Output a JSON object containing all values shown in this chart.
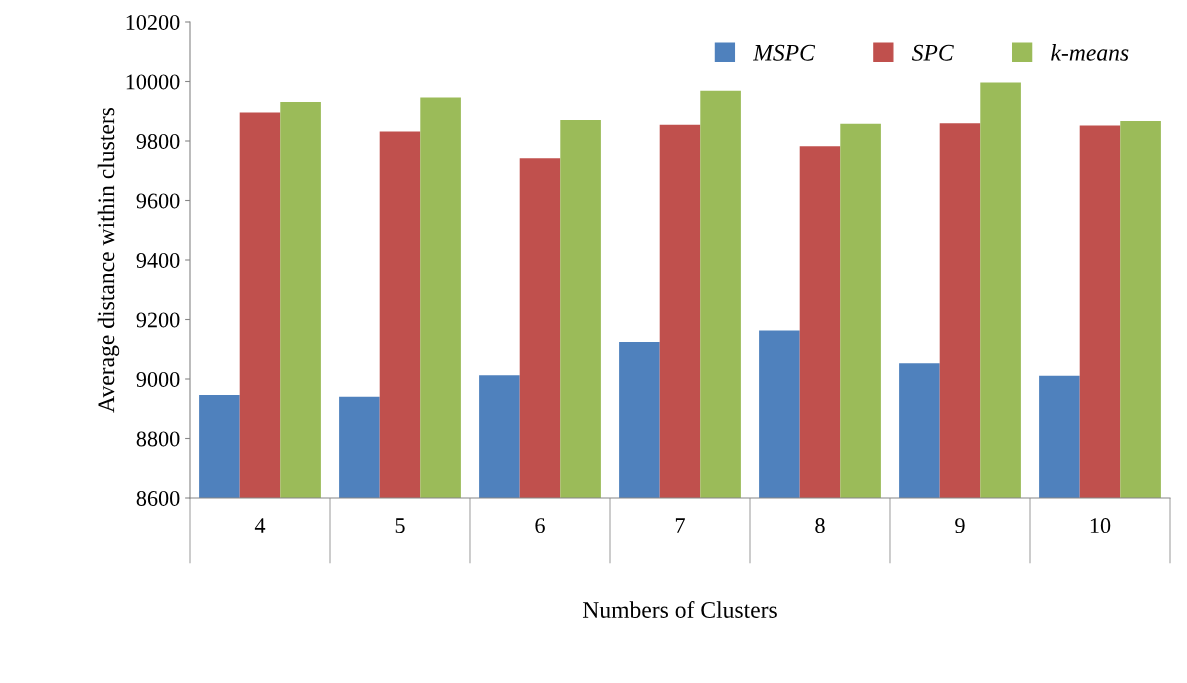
{
  "chart_data": {
    "type": "bar",
    "xlabel": "Numbers of Clusters",
    "ylabel": "Average distance within clusters",
    "categories": [
      "4",
      "5",
      "6",
      "7",
      "8",
      "9",
      "10"
    ],
    "series": [
      {
        "name": "MSPC",
        "color": "#4f81bd",
        "values": [
          8946,
          8940,
          9013,
          9124,
          9163,
          9053,
          9011
        ]
      },
      {
        "name": "SPC",
        "color": "#c0504d",
        "values": [
          9896,
          9832,
          9742,
          9855,
          9782,
          9860,
          9852
        ]
      },
      {
        "name": "k-means",
        "color": "#9bbb59",
        "values": [
          9931,
          9946,
          9871,
          9969,
          9858,
          9997,
          9867
        ]
      }
    ],
    "ylim": [
      8600,
      10200
    ],
    "yticks": [
      8600,
      8800,
      9000,
      9200,
      9400,
      9600,
      9800,
      10000,
      10200
    ],
    "grid": false,
    "legend": "top right"
  }
}
